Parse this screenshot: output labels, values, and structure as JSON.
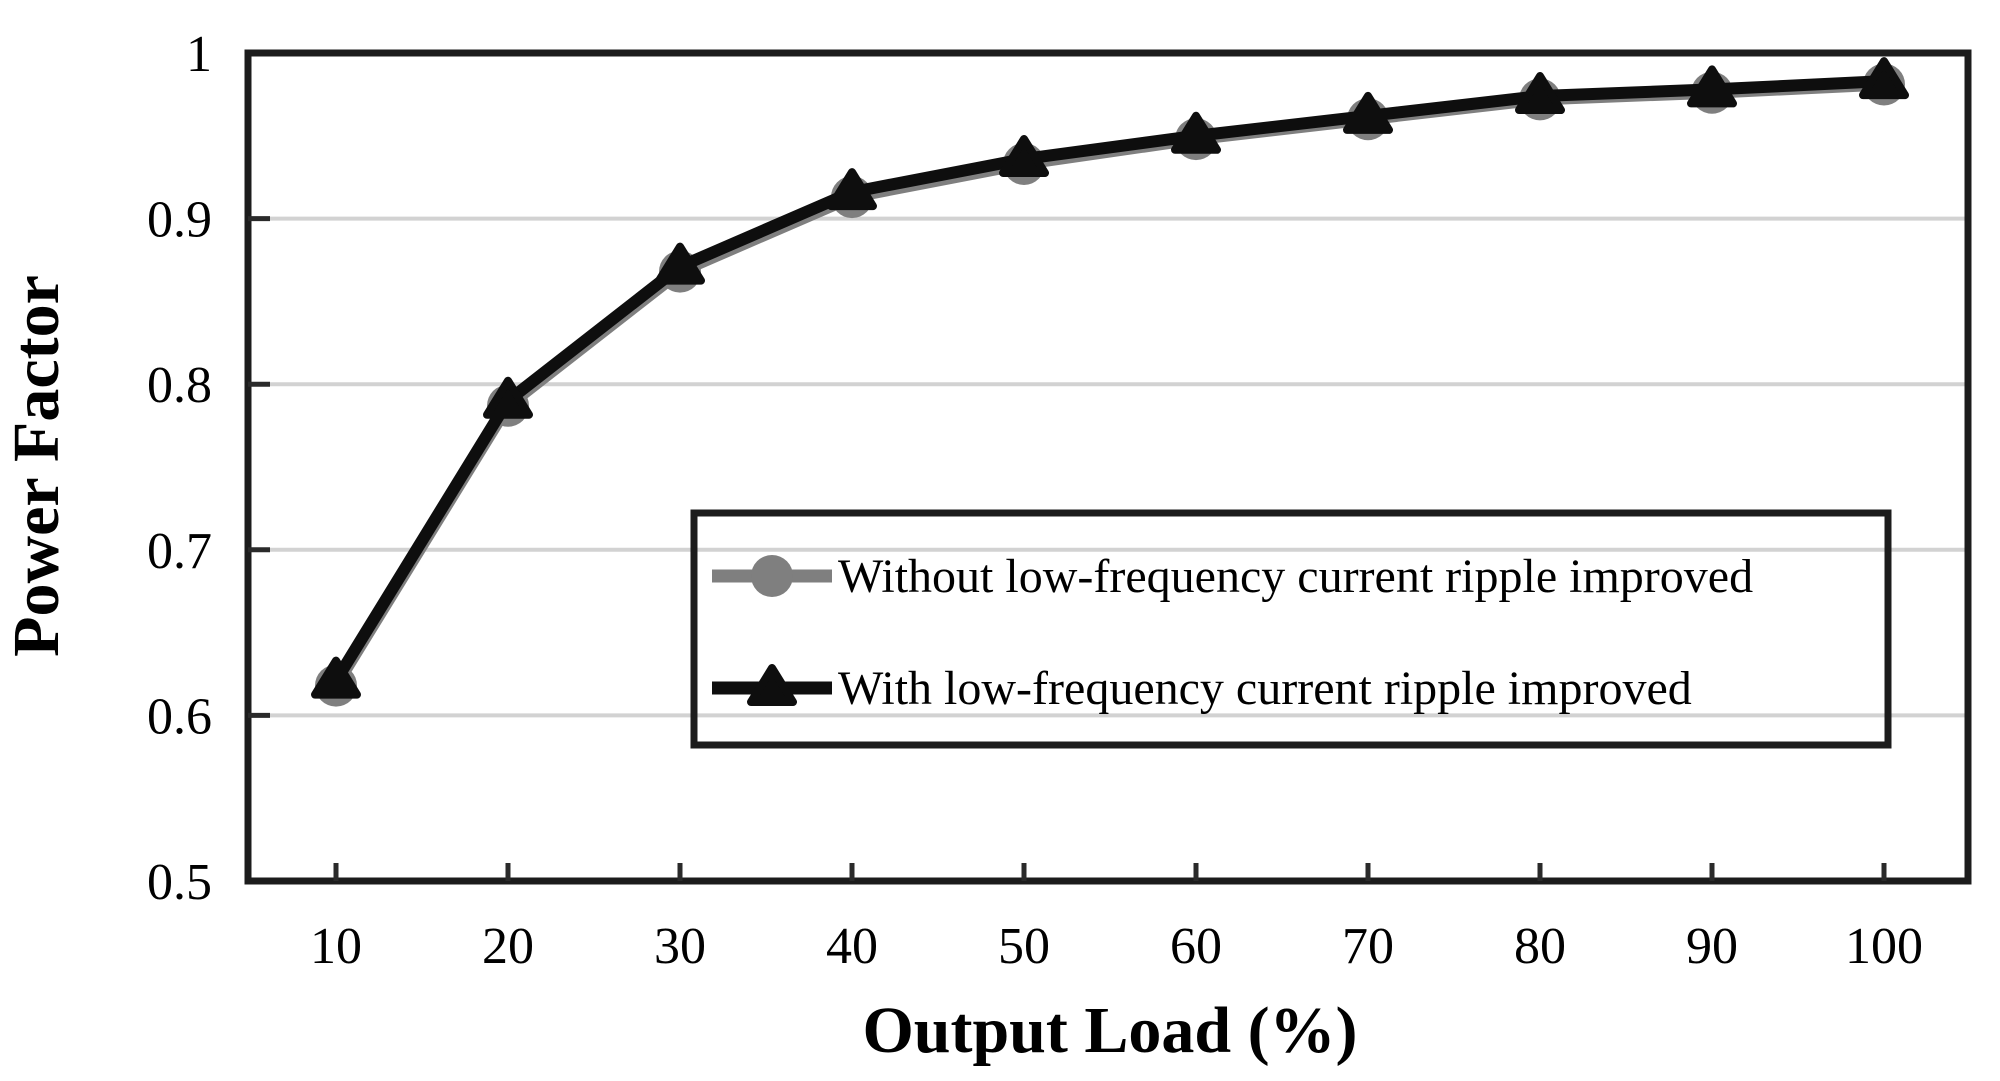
{
  "figure": {
    "background": "#ffffff"
  },
  "chart_data": {
    "type": "line",
    "title": "",
    "xlabel": "Output Load (%)",
    "ylabel": "Power Factor",
    "categories": [
      10,
      20,
      30,
      40,
      50,
      60,
      70,
      80,
      90,
      100
    ],
    "ylim": [
      0.5,
      1.0
    ],
    "yticks": [
      {
        "label": "1",
        "value": 1.0
      },
      {
        "label": "0.9",
        "value": 0.9
      },
      {
        "label": "0.8",
        "value": 0.8
      },
      {
        "label": "0.7",
        "value": 0.7
      },
      {
        "label": "0.6",
        "value": 0.6
      },
      {
        "label": "0.5",
        "value": 0.5
      }
    ],
    "grid": "horizontal",
    "legend_position": "inside-lower-right-box",
    "series": [
      {
        "name": "Without low-frequency current ripple improved",
        "marker": "circle",
        "color": "#7f7f7f",
        "values": [
          0.618,
          0.787,
          0.868,
          0.913,
          0.933,
          0.948,
          0.96,
          0.972,
          0.976,
          0.981
        ]
      },
      {
        "name": "With low-frequency current ripple improved",
        "marker": "triangle",
        "color": "#0e0e0e",
        "values": [
          0.621,
          0.79,
          0.871,
          0.916,
          0.936,
          0.95,
          0.962,
          0.974,
          0.978,
          0.983
        ]
      }
    ]
  },
  "styles": {
    "grid_color": "#d2d2d2",
    "axis_color": "#1c1c1c",
    "tick_color": "#2a2a2a",
    "text_color": "#000000",
    "background": "#ffffff"
  }
}
